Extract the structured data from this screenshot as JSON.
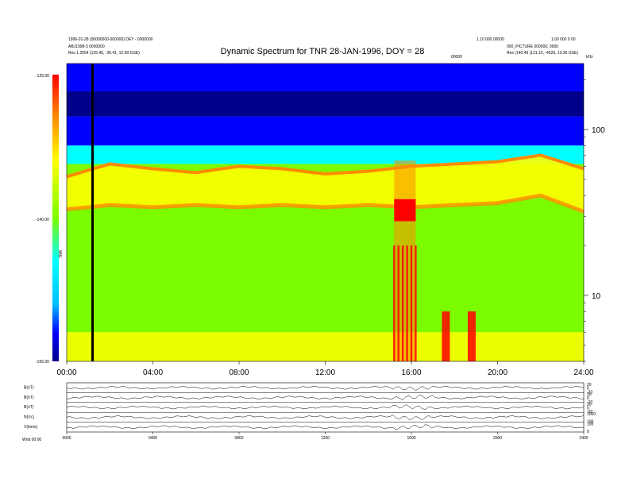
{
  "header": {
    "title": "Dynamic Spectrum for TNR 28-JAN-1996, DOY = 28",
    "left_line1": "1996-01-28 (00000000-000000) DEY - 0000000",
    "left_line2": "ABJ1998-3 0000000",
    "left_line3": "Res    1.2554 (125.45, -30.41, 12.99 GSE)",
    "right_line1": "1.10 000 00000",
    "right_line2": "1.00 000 0 00",
    "right_line3": "000_PICTURE 000000, 0000",
    "right_line4": "Res    (140.49 (121.10, -4626, 13.36 GSE)",
    "mid_small": "00000"
  },
  "colorbar": {
    "ticks": [
      "-125.00",
      "-140.00",
      "-155.00"
    ],
    "label": "TNR"
  },
  "chart_data": [
    {
      "type": "heatmap",
      "title": "Dynamic Spectrum for TNR 28-JAN-1996, DOY = 28",
      "xlabel": "",
      "ylabel": "kHz",
      "x_ticks": [
        "00:00",
        "04:00",
        "08:00",
        "12:00",
        "16:00",
        "20:00",
        "24:00"
      ],
      "xlim_hours": [
        0,
        24
      ],
      "y_ticks": [
        "100",
        "10"
      ],
      "y_scale": "log",
      "ylim_khz": [
        4,
        250
      ],
      "colorbar_range": [
        -155,
        -125
      ],
      "colormap": [
        "#00008b",
        "#0000ff",
        "#00bfff",
        "#00ffff",
        "#7cfc00",
        "#ffff00",
        "#ff8c00",
        "#ff0000"
      ],
      "marker_line_hour": 1.2,
      "features": {
        "background_top_band_khz": [
          80,
          250
        ],
        "plasma_line_upper_khz": [
          52,
          62,
          58,
          55,
          60,
          58,
          54,
          56,
          60,
          62,
          64,
          70,
          58
        ],
        "plasma_line_lower_khz": [
          33,
          35,
          34,
          35,
          34,
          35,
          34,
          35,
          34,
          35,
          36,
          40,
          32
        ],
        "intense_burst_hours": [
          15.2,
          16.2
        ],
        "low_freq_burst_hours": [
          17.6,
          18.8
        ],
        "band_hours": [
          0,
          2,
          4,
          6,
          8,
          10,
          12,
          14,
          16,
          18,
          20,
          22,
          24
        ]
      }
    },
    {
      "type": "line",
      "title": "",
      "panels": [
        {
          "name": "B(nT)",
          "right_ticks": [
            "20",
            "0",
            "-20"
          ]
        },
        {
          "name": "B(nT)",
          "right_ticks": [
            "20",
            "0",
            "-20"
          ]
        },
        {
          "name": "B(nT)",
          "right_ticks": [
            "20",
            "0",
            "-20"
          ]
        },
        {
          "name": "N(/cc)",
          "right_ticks": [
            "1000",
            "100"
          ]
        },
        {
          "name": "V(km/s)",
          "right_ticks": [
            "100",
            "0"
          ]
        }
      ],
      "x_ticks": [
        "0000",
        "0400",
        "0800",
        "1200",
        "1600",
        "2000",
        "2400"
      ],
      "footer_left": "Wnd   00 00"
    }
  ]
}
